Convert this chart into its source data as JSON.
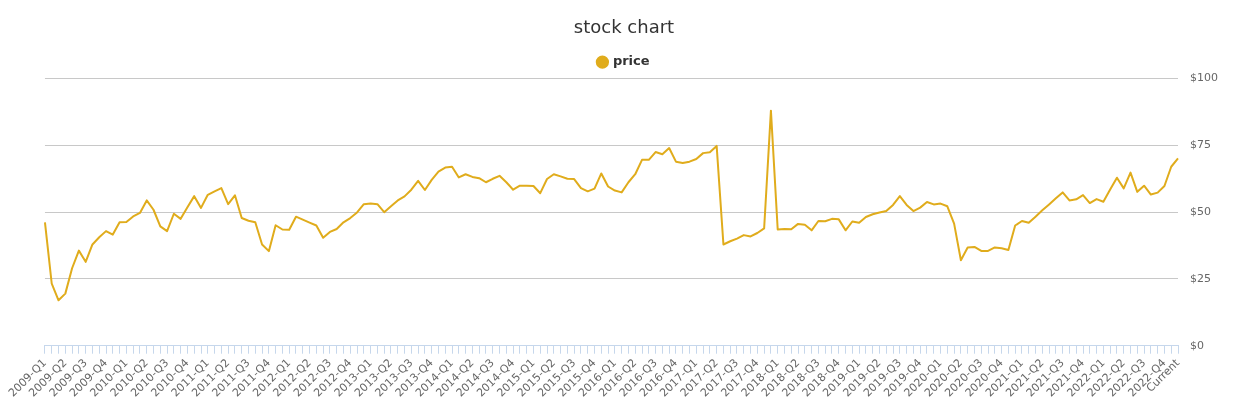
{
  "chart_data": {
    "type": "line",
    "title": "stock chart",
    "categories": [
      "2009-Q1",
      null,
      null,
      "2009-Q2",
      null,
      null,
      "2009-Q3",
      null,
      null,
      "2009-Q4",
      null,
      null,
      "2010-Q1",
      null,
      null,
      "2010-Q2",
      null,
      null,
      "2010-Q3",
      null,
      null,
      "2010-Q4",
      null,
      null,
      "2011-Q1",
      null,
      null,
      "2011-Q2",
      null,
      null,
      "2011-Q3",
      null,
      null,
      "2011-Q4",
      null,
      null,
      "2012-Q1",
      null,
      null,
      "2012-Q2",
      null,
      null,
      "2012-Q3",
      null,
      null,
      "2012-Q4",
      null,
      null,
      "2013-Q1",
      null,
      null,
      "2013-Q2",
      null,
      null,
      "2013-Q3",
      null,
      null,
      "2013-Q4",
      null,
      null,
      "2014-Q1",
      null,
      null,
      "2014-Q2",
      null,
      null,
      "2014-Q3",
      null,
      null,
      "2014-Q4",
      null,
      null,
      "2015-Q1",
      null,
      null,
      "2015-Q2",
      null,
      null,
      "2015-Q3",
      null,
      null,
      "2015-Q4",
      null,
      null,
      "2016-Q1",
      null,
      null,
      "2016-Q2",
      null,
      null,
      "2016-Q3",
      null,
      null,
      "2016-Q4",
      null,
      null,
      "2017-Q1",
      null,
      null,
      "2017-Q2",
      null,
      null,
      "2017-Q3",
      null,
      null,
      "2017-Q4",
      null,
      null,
      "2018-Q1",
      null,
      null,
      "2018-Q2",
      null,
      null,
      "2018-Q3",
      null,
      null,
      "2018-Q4",
      null,
      null,
      "2019-Q1",
      null,
      null,
      "2019-Q2",
      null,
      null,
      "2019-Q3",
      null,
      null,
      "2019-Q4",
      null,
      null,
      "2020-Q1",
      null,
      null,
      "2020-Q2",
      null,
      null,
      "2020-Q3",
      null,
      null,
      "2020-Q4",
      null,
      null,
      "2021-Q1",
      null,
      null,
      "2021-Q2",
      null,
      null,
      "2021-Q3",
      null,
      null,
      "2021-Q4",
      null,
      null,
      "2022-Q1",
      null,
      null,
      "2022-Q2",
      null,
      null,
      "2022-Q3",
      null,
      null,
      "2022-Q4",
      null,
      "Current"
    ],
    "series": [
      {
        "name": "price",
        "color": "#e0ac1c",
        "values": [
          46.2,
          23.2,
          17,
          19.5,
          29,
          35.6,
          31.4,
          37.9,
          40.6,
          42.9,
          41.6,
          46.2,
          46.3,
          48.4,
          49.7,
          54.4,
          50.9,
          44.7,
          42.9,
          49.4,
          47.5,
          51.8,
          56,
          51.6,
          56.5,
          57.8,
          59,
          53,
          56.3,
          47.8,
          46.8,
          46.2,
          37.9,
          35.4,
          45.1,
          43.5,
          43.4,
          48.3,
          47.2,
          46.1,
          45,
          40.4,
          42.6,
          43.7,
          46.2,
          47.8,
          49.9,
          53,
          53.2,
          53,
          50,
          52.2,
          54.4,
          55.9,
          58.4,
          61.7,
          58.3,
          62.1,
          65.2,
          66.7,
          67,
          63,
          64.2,
          63.2,
          62.7,
          61.2,
          62.5,
          63.6,
          61.2,
          58.4,
          59.9,
          59.9,
          59.8,
          57.1,
          62.4,
          64.2,
          63.4,
          62.5,
          62.4,
          59,
          57.8,
          58.8,
          64.5,
          59.6,
          58.1,
          57.4,
          61.2,
          64.2,
          69.6,
          69.6,
          72.5,
          71.7,
          74,
          68.9,
          68.4,
          68.9,
          69.9,
          72.1,
          72.4,
          74.8,
          37.9,
          39.1,
          40.1,
          41.4,
          40.9,
          42.2,
          43.9,
          88,
          43.5,
          43.7,
          43.6,
          45.6,
          45.3,
          43.2,
          46.7,
          46.6,
          47.5,
          47.3,
          43.2,
          46.5,
          46,
          48.2,
          49.2,
          49.9,
          50.4,
          52.7,
          56,
          52.7,
          50.4,
          51.7,
          53.8,
          52.9,
          53.2,
          52.2,
          45.7,
          32,
          36.8,
          37,
          35.5,
          35.5,
          36.8,
          36.5,
          35.8,
          45,
          46.7,
          46,
          48.3,
          50.7,
          52.9,
          55.2,
          57.4,
          54.4,
          54.8,
          56.4,
          53.4,
          54.9,
          53.9,
          58.5,
          62.9,
          58.9,
          64.8,
          57.6,
          59.9,
          56.6,
          57.3,
          59.8,
          67,
          70.1
        ]
      }
    ],
    "ylim": [
      0,
      100
    ],
    "yticks": [
      {
        "value": 0,
        "label": "$0"
      },
      {
        "value": 25,
        "label": "$25"
      },
      {
        "value": 50,
        "label": "$50"
      },
      {
        "value": 75,
        "label": "$75"
      },
      {
        "value": 100,
        "label": "$100"
      }
    ],
    "grid": "y",
    "legend": "top",
    "marker": "none",
    "line_style": "solid"
  }
}
